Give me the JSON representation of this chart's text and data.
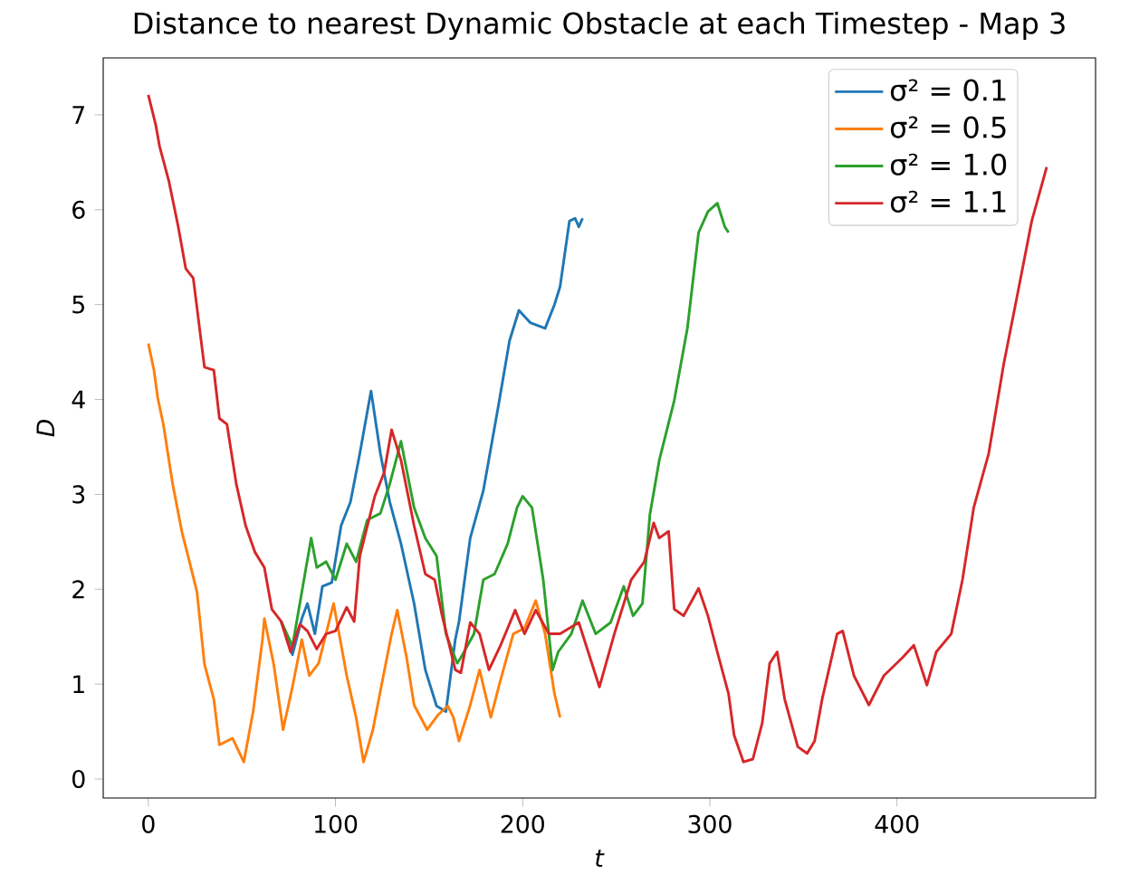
{
  "chart_data": {
    "type": "line",
    "title": "Distance to nearest Dynamic Obstacle at each Timestep - Map 3",
    "xlabel": "*t*",
    "ylabel": "*D*",
    "xlim": [
      -24.1,
      506.1
    ],
    "ylim": [
      -0.2,
      7.6
    ],
    "xticks": [
      0,
      100,
      200,
      300,
      400
    ],
    "yticks": [
      0,
      1,
      2,
      3,
      4,
      5,
      6,
      7
    ],
    "legend": "top right",
    "series": [
      {
        "name": "σ² = 0.1",
        "color": "#1f77b4",
        "x": [
          71,
          77,
          82,
          85,
          89,
          93,
          98,
          103,
          108,
          113,
          119,
          124,
          129,
          135,
          142,
          148,
          154,
          159,
          164,
          166,
          172,
          179,
          187,
          193,
          198,
          204,
          212,
          217,
          220,
          225,
          228,
          230,
          232
        ],
        "values": [
          1.66,
          1.31,
          1.69,
          1.85,
          1.53,
          2.03,
          2.07,
          2.67,
          2.92,
          3.43,
          4.09,
          3.43,
          2.92,
          2.48,
          1.85,
          1.15,
          0.77,
          0.71,
          1.47,
          1.66,
          2.54,
          3.04,
          3.93,
          4.62,
          4.94,
          4.81,
          4.75,
          5.0,
          5.19,
          5.88,
          5.91,
          5.82,
          5.91
        ]
      },
      {
        "name": "σ² = 0.5",
        "color": "#ff7f0e",
        "x": [
          0,
          3,
          5,
          8,
          13,
          18,
          22,
          26,
          30,
          35,
          38,
          45,
          51,
          56,
          61,
          62,
          67,
          72,
          77,
          82,
          86,
          91,
          99,
          106,
          111,
          115,
          120,
          125,
          130,
          133,
          138,
          142,
          149,
          155,
          160,
          163,
          166,
          172,
          177,
          183,
          188,
          195,
          201,
          207,
          212,
          217,
          220
        ],
        "values": [
          4.59,
          4.31,
          4.02,
          3.74,
          3.11,
          2.6,
          2.29,
          1.97,
          1.21,
          0.84,
          0.36,
          0.43,
          0.18,
          0.71,
          1.47,
          1.69,
          1.21,
          0.52,
          0.97,
          1.47,
          1.09,
          1.22,
          1.85,
          1.09,
          0.65,
          0.18,
          0.52,
          1.03,
          1.53,
          1.78,
          1.28,
          0.78,
          0.52,
          0.68,
          0.77,
          0.65,
          0.4,
          0.78,
          1.15,
          0.65,
          1.03,
          1.53,
          1.59,
          1.88,
          1.53,
          0.9,
          0.65
        ]
      },
      {
        "name": "σ² = 1.0",
        "color": "#2ca02c",
        "x": [
          71,
          77,
          82,
          87,
          90,
          95,
          100,
          106,
          111,
          117,
          124,
          129,
          135,
          142,
          148,
          154,
          159,
          165,
          167,
          174,
          179,
          185,
          192,
          197,
          200,
          205,
          211,
          216,
          219,
          226,
          232,
          239,
          247,
          254,
          259,
          264,
          268,
          273,
          281,
          288,
          294,
          299,
          304,
          308,
          310
        ],
        "values": [
          1.66,
          1.4,
          1.97,
          2.54,
          2.23,
          2.29,
          2.1,
          2.48,
          2.29,
          2.73,
          2.8,
          3.11,
          3.56,
          2.86,
          2.54,
          2.35,
          1.53,
          1.22,
          1.28,
          1.53,
          2.1,
          2.16,
          2.48,
          2.86,
          2.98,
          2.86,
          2.1,
          1.15,
          1.34,
          1.53,
          1.88,
          1.53,
          1.65,
          2.03,
          1.72,
          1.85,
          2.79,
          3.36,
          3.99,
          4.75,
          5.76,
          5.98,
          6.07,
          5.82,
          5.76
        ]
      },
      {
        "name": "σ² = 1.1",
        "color": "#d62728",
        "x": [
          0,
          4,
          6,
          11,
          16,
          20,
          24,
          27,
          30,
          35,
          38,
          42,
          47,
          52,
          57,
          62,
          66,
          71,
          76,
          81,
          85,
          90,
          95,
          100,
          106,
          110,
          113,
          121,
          126,
          130,
          135,
          142,
          148,
          153,
          157,
          164,
          167,
          172,
          177,
          182,
          188,
          196,
          201,
          207,
          214,
          220,
          230,
          241,
          249,
          258,
          265,
          270,
          273,
          278,
          281,
          286,
          294,
          299,
          304,
          310,
          313,
          318,
          323,
          328,
          332,
          336,
          340,
          347,
          352,
          356,
          360,
          368,
          371,
          377,
          385,
          393,
          403,
          409,
          416,
          421,
          429,
          435,
          441,
          449,
          457,
          464,
          472,
          480
        ],
        "values": [
          7.21,
          6.89,
          6.67,
          6.3,
          5.82,
          5.38,
          5.28,
          4.81,
          4.34,
          4.31,
          3.8,
          3.74,
          3.11,
          2.67,
          2.39,
          2.23,
          1.79,
          1.66,
          1.34,
          1.63,
          1.56,
          1.37,
          1.53,
          1.56,
          1.81,
          1.66,
          2.35,
          2.98,
          3.23,
          3.68,
          3.36,
          2.67,
          2.16,
          2.1,
          1.72,
          1.15,
          1.12,
          1.65,
          1.53,
          1.15,
          1.4,
          1.78,
          1.53,
          1.78,
          1.53,
          1.53,
          1.65,
          0.97,
          1.53,
          2.1,
          2.29,
          2.7,
          2.54,
          2.61,
          1.79,
          1.72,
          2.01,
          1.72,
          1.34,
          0.9,
          0.46,
          0.18,
          0.21,
          0.59,
          1.22,
          1.34,
          0.84,
          0.34,
          0.27,
          0.4,
          0.84,
          1.53,
          1.56,
          1.09,
          0.78,
          1.09,
          1.28,
          1.41,
          0.99,
          1.34,
          1.53,
          2.1,
          2.86,
          3.43,
          4.37,
          5.07,
          5.88,
          6.45
        ]
      }
    ]
  }
}
